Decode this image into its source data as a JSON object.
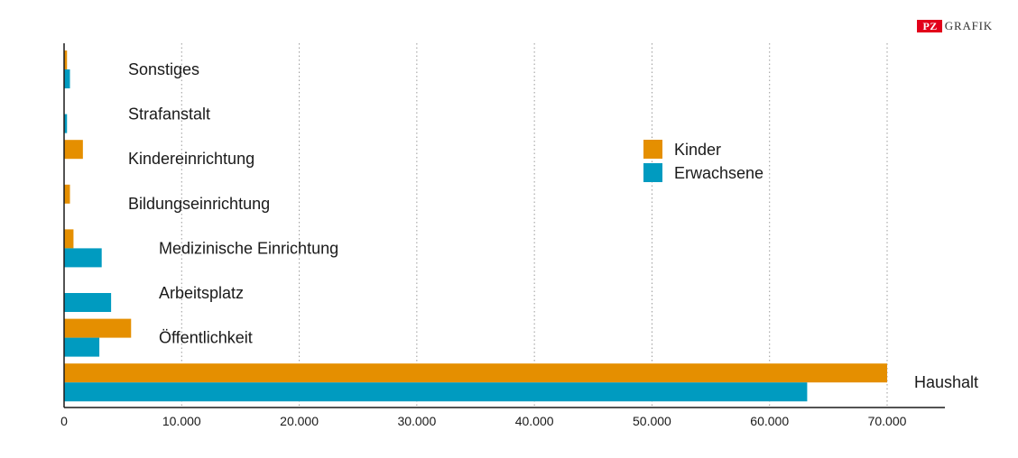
{
  "logo": {
    "badge": "PZ",
    "text": "GRAFIK"
  },
  "chart_data": {
    "type": "bar",
    "orientation": "horizontal",
    "categories": [
      "Sonstiges",
      "Strafanstalt",
      "Kindereinrichtung",
      "Bildungseinrichtung",
      "Medizinische Einrichtung",
      "Arbeitsplatz",
      "Öffentlichkeit",
      "Haushalt"
    ],
    "series": [
      {
        "name": "Kinder",
        "color": "#e58f00",
        "values": [
          250,
          0,
          1600,
          500,
          800,
          0,
          5700,
          70000
        ]
      },
      {
        "name": "Erwachsene",
        "color": "#009bc0",
        "values": [
          500,
          250,
          0,
          0,
          3200,
          4000,
          3000,
          63200
        ]
      }
    ],
    "xlim": [
      0,
      75000
    ],
    "xticks": [
      0,
      10000,
      20000,
      30000,
      40000,
      50000,
      60000,
      70000
    ],
    "xtick_labels": [
      "0",
      "10.000",
      "20.000",
      "30.000",
      "40.000",
      "50.000",
      "60.000",
      "70.000"
    ],
    "grid": "vertical dotted",
    "legend_position": "center-right",
    "xlabel": "",
    "ylabel": ""
  }
}
